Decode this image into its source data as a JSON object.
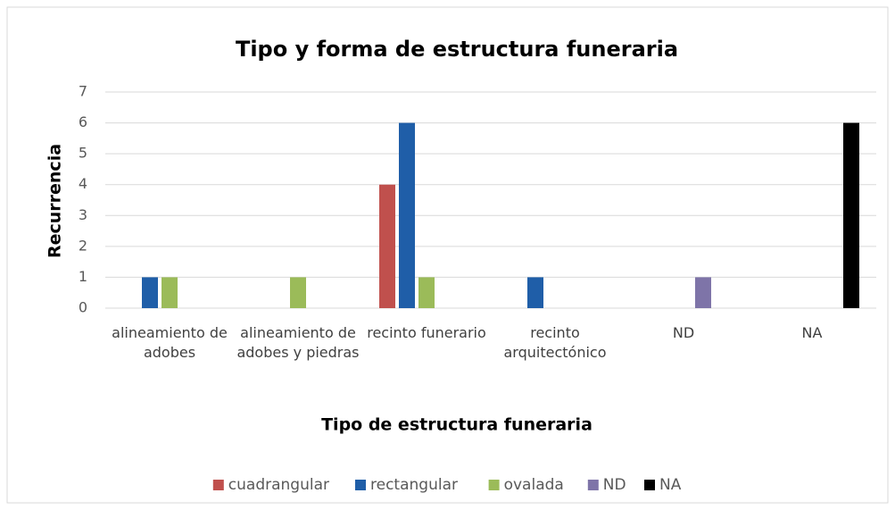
{
  "chart_data": {
    "type": "bar",
    "title": "Tipo y forma de estructura funeraria",
    "x_label": "Tipo de estructura funeraria",
    "y_label": "Recurrencia",
    "categories": [
      "alineamiento de adobes",
      "alineamiento de adobes y piedras",
      "recinto funerario",
      "recinto arquitectónico",
      "ND",
      "NA"
    ],
    "series": [
      {
        "name": "cuadrangular",
        "color": "#c0504d",
        "values": [
          0,
          0,
          4,
          0,
          0,
          0
        ]
      },
      {
        "name": "rectangular",
        "color": "#1f5ea8",
        "values": [
          1,
          0,
          6,
          1,
          0,
          0
        ]
      },
      {
        "name": "ovalada",
        "color": "#9bbb59",
        "values": [
          1,
          1,
          1,
          0,
          0,
          0
        ]
      },
      {
        "name": "ND",
        "color": "#7e74a8",
        "values": [
          0,
          0,
          0,
          0,
          1,
          0
        ]
      },
      {
        "name": "NA",
        "color": "#000000",
        "values": [
          0,
          0,
          0,
          0,
          0,
          6
        ]
      }
    ],
    "ylim": [
      0,
      7
    ],
    "yticks": [
      0,
      1,
      2,
      3,
      4,
      5,
      6,
      7
    ],
    "grid": true,
    "legend": "bottom"
  }
}
